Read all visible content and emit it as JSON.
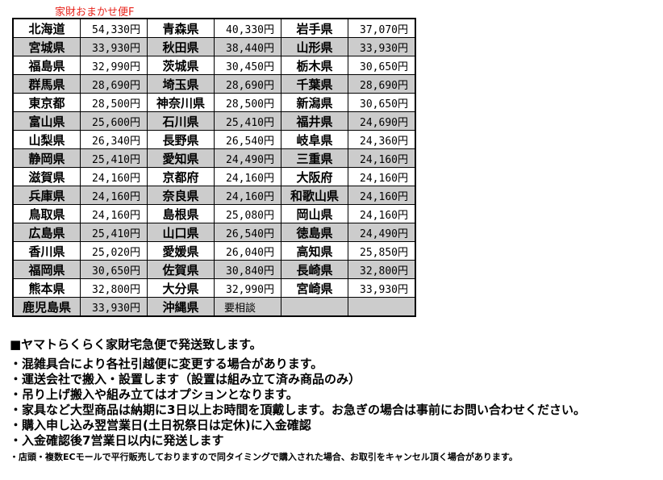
{
  "title": "家財おまかせ便F",
  "rows": [
    [
      [
        "北海道",
        "54,330円"
      ],
      [
        "青森県",
        "40,330円"
      ],
      [
        "岩手県",
        "37,070円"
      ]
    ],
    [
      [
        "宮城県",
        "33,930円"
      ],
      [
        "秋田県",
        "38,440円"
      ],
      [
        "山形県",
        "33,930円"
      ]
    ],
    [
      [
        "福島県",
        "32,990円"
      ],
      [
        "茨城県",
        "30,450円"
      ],
      [
        "栃木県",
        "30,650円"
      ]
    ],
    [
      [
        "群馬県",
        "28,690円"
      ],
      [
        "埼玉県",
        "28,690円"
      ],
      [
        "千葉県",
        "28,690円"
      ]
    ],
    [
      [
        "東京都",
        "28,500円"
      ],
      [
        "神奈川県",
        "28,500円"
      ],
      [
        "新潟県",
        "30,650円"
      ]
    ],
    [
      [
        "富山県",
        "25,600円"
      ],
      [
        "石川県",
        "25,410円"
      ],
      [
        "福井県",
        "24,690円"
      ]
    ],
    [
      [
        "山梨県",
        "26,340円"
      ],
      [
        "長野県",
        "26,540円"
      ],
      [
        "岐阜県",
        "24,360円"
      ]
    ],
    [
      [
        "静岡県",
        "25,410円"
      ],
      [
        "愛知県",
        "24,490円"
      ],
      [
        "三重県",
        "24,160円"
      ]
    ],
    [
      [
        "滋賀県",
        "24,160円"
      ],
      [
        "京都府",
        "24,160円"
      ],
      [
        "大阪府",
        "24,160円"
      ]
    ],
    [
      [
        "兵庫県",
        "24,160円"
      ],
      [
        "奈良県",
        "24,160円"
      ],
      [
        "和歌山県",
        "24,160円"
      ]
    ],
    [
      [
        "鳥取県",
        "24,160円"
      ],
      [
        "島根県",
        "25,080円"
      ],
      [
        "岡山県",
        "24,160円"
      ]
    ],
    [
      [
        "広島県",
        "25,410円"
      ],
      [
        "山口県",
        "26,540円"
      ],
      [
        "徳島県",
        "24,490円"
      ]
    ],
    [
      [
        "香川県",
        "25,020円"
      ],
      [
        "愛媛県",
        "26,040円"
      ],
      [
        "高知県",
        "25,850円"
      ]
    ],
    [
      [
        "福岡県",
        "30,650円"
      ],
      [
        "佐賀県",
        "30,840円"
      ],
      [
        "長崎県",
        "32,800円"
      ]
    ],
    [
      [
        "熊本県",
        "32,800円"
      ],
      [
        "大分県",
        "32,990円"
      ],
      [
        "宮崎県",
        "33,930円"
      ]
    ],
    [
      [
        "鹿児島県",
        "33,930円"
      ],
      [
        "沖縄県",
        "要相談"
      ],
      [
        "",
        ""
      ]
    ]
  ],
  "heading": "■ヤマトらくらく家財宅急便で発送致します。",
  "notes": [
    "・混雑具合により各社引越便に変更する場合があります。",
    "・運送会社で搬入・設置します（設置は組み立て済み商品のみ）",
    "・吊り上げ搬入や組み立てはオプションとなります。",
    "・家具など大型商品は納期に3日以上お時間を頂戴します。お急ぎの場合は事前にお問い合わせください。",
    "・購入申し込み翌営業日(土日祝祭日は定休)に入金確認",
    "・入金確認後7営業日以内に発送します"
  ],
  "footnote": "・店頭・複数ECモールで平行販売しておりますので同タイミングで購入された場合、お取引をキャンセル頂く場合があります。",
  "colors": {
    "title": "#e8241c",
    "row_shade": "#cccccc"
  }
}
